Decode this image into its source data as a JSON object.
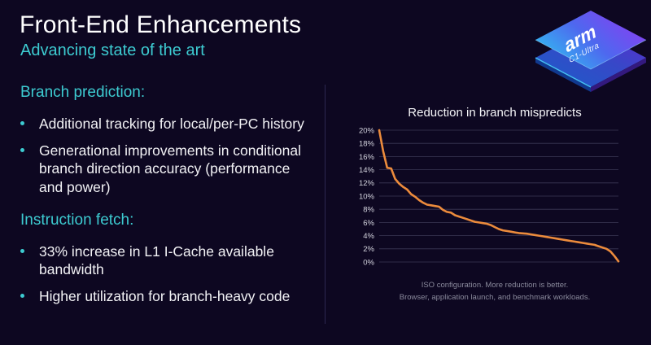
{
  "slide": {
    "title": "Front-End Enhancements",
    "subtitle": "Advancing state of the art"
  },
  "logo": {
    "brand": "arm",
    "product": "C1-Ultra"
  },
  "sections": [
    {
      "heading": "Branch prediction:",
      "bullets": [
        "Additional tracking for local/per-PC history",
        "Generational improvements in conditional branch direction accuracy (performance and power)"
      ]
    },
    {
      "heading": "Instruction fetch:",
      "bullets": [
        "33% increase in L1 I-Cache available bandwidth",
        "Higher utilization for branch-heavy code"
      ]
    }
  ],
  "chart": {
    "title": "Reduction in branch mispredicts",
    "caption_line1": "ISO configuration.  More reduction is better.",
    "caption_line2": "Browser, application launch, and benchmark workloads."
  },
  "chart_data": {
    "type": "line",
    "title": "Reduction in branch mispredicts",
    "xlabel": "",
    "ylabel": "",
    "ylim": [
      0,
      20
    ],
    "ytick_labels": [
      "0%",
      "2%",
      "4%",
      "6%",
      "8%",
      "10%",
      "12%",
      "14%",
      "16%",
      "18%",
      "20%"
    ],
    "grid": true,
    "legend_position": "none",
    "x_axis": "workloads sorted by reduction (unlabeled)",
    "series": [
      {
        "name": "branch mispredict reduction",
        "color": "#ec8b3c",
        "values": [
          20.0,
          16.8,
          14.3,
          14.2,
          12.6,
          11.9,
          11.4,
          11.0,
          10.3,
          9.9,
          9.4,
          9.0,
          8.7,
          8.6,
          8.5,
          8.4,
          7.9,
          7.6,
          7.5,
          7.1,
          6.9,
          6.7,
          6.5,
          6.3,
          6.1,
          6.0,
          5.9,
          5.8,
          5.6,
          5.3,
          5.0,
          4.8,
          4.7,
          4.6,
          4.5,
          4.4,
          4.35,
          4.3,
          4.2,
          4.1,
          4.0,
          3.9,
          3.8,
          3.7,
          3.6,
          3.5,
          3.4,
          3.3,
          3.2,
          3.1,
          3.0,
          2.9,
          2.8,
          2.7,
          2.6,
          2.4,
          2.2,
          2.0,
          1.6,
          0.9,
          0.1
        ]
      }
    ]
  },
  "colors": {
    "background": "#0d0721",
    "accent_cyan": "#3dcbd1",
    "line_orange": "#ec8b3c",
    "grid": "#3c3956",
    "axis_label": "#d6d6e0",
    "caption": "#8a8a9c",
    "divider": "#2c2750",
    "chip_blue": "#2fc3f0",
    "chip_purple": "#8a3cf2"
  }
}
